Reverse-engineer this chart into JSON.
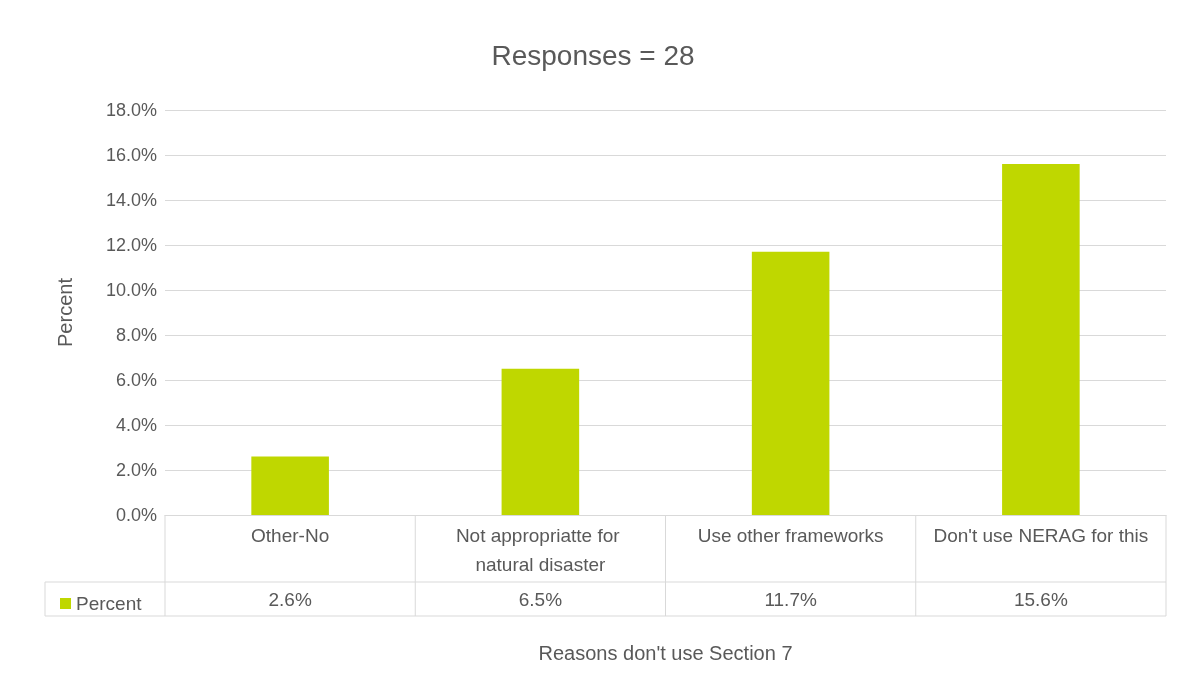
{
  "chart_data": {
    "type": "bar",
    "title": "Responses = 28",
    "xlabel": "Reasons don't use Section 7",
    "ylabel": "Percent",
    "categories": [
      "Other-No",
      "Not appropriatte for natural disaster",
      "Use other frameworks",
      "Don't use NERAG for this"
    ],
    "series": [
      {
        "name": "Percent",
        "color": "#bfd700",
        "values": [
          2.6,
          6.5,
          11.7,
          15.6
        ],
        "value_labels": [
          "2.6%",
          "6.5%",
          "11.7%",
          "15.6%"
        ]
      }
    ],
    "ylim": [
      0,
      18
    ],
    "yticks": [
      {
        "value": 0,
        "label": "0.0%"
      },
      {
        "value": 2,
        "label": "2.0%"
      },
      {
        "value": 4,
        "label": "4.0%"
      },
      {
        "value": 6,
        "label": "6.0%"
      },
      {
        "value": 8,
        "label": "8.0%"
      },
      {
        "value": 10,
        "label": "10.0%"
      },
      {
        "value": 12,
        "label": "12.0%"
      },
      {
        "value": 14,
        "label": "14.0%"
      },
      {
        "value": 16,
        "label": "16.0%"
      },
      {
        "value": 18,
        "label": "18.0%"
      }
    ],
    "grid": true,
    "legend": "bottom left"
  }
}
